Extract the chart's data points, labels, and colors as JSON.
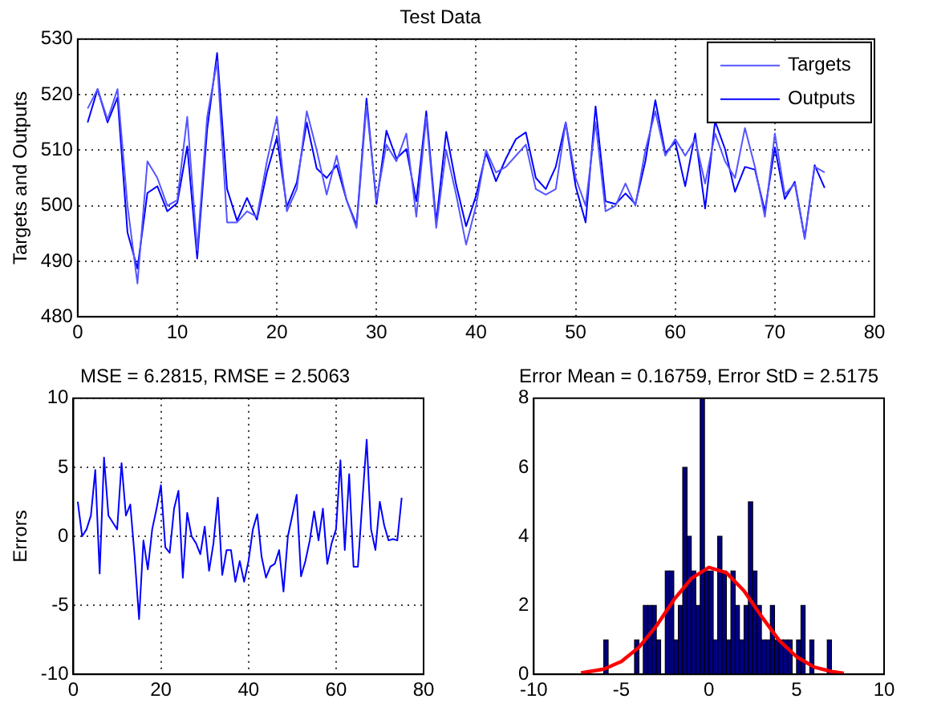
{
  "chart_data": [
    {
      "type": "line",
      "title": "Test Data",
      "ylabel": "Targets and Outputs",
      "x": [
        1,
        2,
        3,
        4,
        5,
        6,
        7,
        8,
        9,
        10,
        11,
        12,
        13,
        14,
        15,
        16,
        17,
        18,
        19,
        20,
        21,
        22,
        23,
        24,
        25,
        26,
        27,
        28,
        29,
        30,
        31,
        32,
        33,
        34,
        35,
        36,
        37,
        38,
        39,
        40,
        41,
        42,
        43,
        44,
        45,
        46,
        47,
        48,
        49,
        50,
        51,
        52,
        53,
        54,
        55,
        56,
        57,
        58,
        59,
        60,
        61,
        62,
        63,
        64,
        65,
        66,
        67,
        68,
        69,
        70,
        71,
        72,
        73,
        74,
        75
      ],
      "series": [
        {
          "name": "Targets",
          "color": "#5555ff",
          "values": [
            517.5,
            521,
            515.5,
            521,
            500,
            486,
            508,
            505,
            500,
            501,
            516,
            492,
            516,
            526,
            497,
            497,
            499,
            498,
            508,
            516,
            499,
            503,
            517,
            510,
            502,
            509,
            501,
            496,
            518,
            501,
            511,
            508,
            513,
            498,
            516,
            496,
            510,
            502,
            493,
            500,
            510,
            506,
            507,
            509,
            511,
            503,
            502,
            503,
            515,
            505,
            500,
            515,
            499,
            500,
            504,
            500,
            510,
            517,
            509,
            512,
            509,
            512,
            504,
            513,
            508,
            505,
            514,
            507,
            498,
            513,
            502,
            504,
            494,
            507,
            506
          ]
        },
        {
          "name": "Outputs",
          "color": "#0000ff",
          "values": [
            515,
            521,
            515,
            519.5,
            495.2,
            488.7,
            502.3,
            503.5,
            499,
            500.5,
            510.7,
            490.5,
            513.7,
            527.5,
            503,
            497.3,
            501.4,
            497.5,
            506,
            512.3,
            499.8,
            504.2,
            515,
            506.7,
            505,
            507.3,
            501,
            496.5,
            519.3,
            500.3,
            513.5,
            508.5,
            510.2,
            500.8,
            517,
            497,
            513.3,
            503.8,
            496.3,
            501.8,
            509.5,
            504.4,
            508.5,
            512,
            513.2,
            505,
            503,
            507,
            515,
            503.5,
            497,
            517.9,
            500.8,
            500.3,
            502.2,
            500.3,
            508,
            519,
            509.5,
            511.5,
            503.5,
            513,
            499.5,
            515.2,
            510.2,
            502.5,
            507,
            506.5,
            499,
            510.5,
            501.2,
            504.3,
            494.2,
            507.3,
            503.2
          ]
        }
      ],
      "xlim": [
        0,
        80
      ],
      "xticks": [
        0,
        10,
        20,
        30,
        40,
        50,
        60,
        70,
        80
      ],
      "ylim": [
        480,
        530
      ],
      "yticks": [
        480,
        490,
        500,
        510,
        520,
        530
      ],
      "grid": true,
      "legend": "top right"
    },
    {
      "type": "line",
      "title": "MSE = 6.2815, RMSE = 2.5063",
      "ylabel": "Errors",
      "x": [
        1,
        2,
        3,
        4,
        5,
        6,
        7,
        8,
        9,
        10,
        11,
        12,
        13,
        14,
        15,
        16,
        17,
        18,
        19,
        20,
        21,
        22,
        23,
        24,
        25,
        26,
        27,
        28,
        29,
        30,
        31,
        32,
        33,
        34,
        35,
        36,
        37,
        38,
        39,
        40,
        41,
        42,
        43,
        44,
        45,
        46,
        47,
        48,
        49,
        50,
        51,
        52,
        53,
        54,
        55,
        56,
        57,
        58,
        59,
        60,
        61,
        62,
        63,
        64,
        65,
        66,
        67,
        68,
        69,
        70,
        71,
        72,
        73,
        74,
        75
      ],
      "color": "#0000ff",
      "values": [
        2.5,
        0,
        0.5,
        1.5,
        4.8,
        -2.7,
        5.7,
        1.5,
        1,
        0.5,
        5.3,
        1.5,
        2.3,
        -1.5,
        -6,
        -0.3,
        -2.4,
        0.5,
        2,
        3.7,
        -0.8,
        -1.2,
        2,
        3.3,
        -3,
        1.7,
        0,
        -0.5,
        -1.3,
        0.7,
        -2.5,
        -0.5,
        2.8,
        -2.8,
        -1,
        -1,
        -3.3,
        -1.8,
        -3.3,
        -1.8,
        0.5,
        1.6,
        -1.5,
        -3,
        -2.2,
        -2,
        -1,
        -4,
        0,
        1.5,
        3,
        -2.9,
        -1.8,
        -0.3,
        1.8,
        -0.3,
        2,
        -2,
        -0.5,
        0.5,
        5.5,
        -1,
        4.5,
        -2.2,
        -2.2,
        2.5,
        7,
        0.5,
        -1,
        2.5,
        0.8,
        -0.3,
        -0.2,
        -0.3,
        2.8
      ],
      "xlim": [
        0,
        80
      ],
      "xticks": [
        0,
        20,
        40,
        60,
        80
      ],
      "ylim": [
        -10,
        10
      ],
      "yticks": [
        -10,
        -5,
        0,
        5,
        10
      ],
      "grid": true
    },
    {
      "type": "histogram",
      "title": "Error Mean = 0.16759, Error StD = 2.5175",
      "series": [
        {
          "type": "histogram",
          "color": "#000080",
          "bins": [
            -6,
            -5.75,
            -5.5,
            -5.25,
            -5,
            -4.75,
            -4.5,
            -4.25,
            -4,
            -3.75,
            -3.5,
            -3.25,
            -3,
            -2.75,
            -2.5,
            -2.25,
            -2,
            -1.75,
            -1.5,
            -1.25,
            -1,
            -0.75,
            -0.5,
            -0.25,
            0,
            0.25,
            0.5,
            0.75,
            1,
            1.25,
            1.5,
            1.75,
            2,
            2.25,
            2.5,
            2.75,
            3,
            3.25,
            3.5,
            3.75,
            4,
            4.25,
            4.5,
            4.75,
            5,
            5.25,
            5.5,
            5.75,
            6,
            6.25,
            6.5,
            6.75,
            7
          ],
          "values": [
            1,
            0,
            0,
            0,
            0,
            0,
            0,
            1,
            0,
            2,
            2,
            2,
            1,
            0,
            3,
            3,
            1,
            2,
            6,
            4,
            3,
            2,
            8,
            3,
            3,
            1,
            4,
            3,
            1,
            3,
            2,
            1,
            2,
            5,
            3,
            2,
            1,
            1,
            2,
            1,
            1,
            1,
            1,
            0,
            1,
            2,
            0,
            1,
            0,
            0,
            0,
            1
          ]
        },
        {
          "type": "line",
          "color": "#ff0000",
          "x": [
            -7.3,
            -6,
            -5,
            -4,
            -3,
            -2,
            -1,
            0,
            1,
            2,
            3,
            4,
            5,
            6,
            7,
            7.7
          ],
          "values": [
            0.04,
            0.15,
            0.37,
            0.78,
            1.4,
            2.16,
            2.78,
            3.1,
            2.94,
            2.42,
            1.68,
            0.99,
            0.51,
            0.21,
            0.08,
            0.03
          ]
        }
      ],
      "xlim": [
        -10,
        10
      ],
      "xticks": [
        -10,
        -5,
        0,
        5,
        10
      ],
      "ylim": [
        0,
        8
      ],
      "yticks": [
        0,
        2,
        4,
        6,
        8
      ]
    }
  ]
}
